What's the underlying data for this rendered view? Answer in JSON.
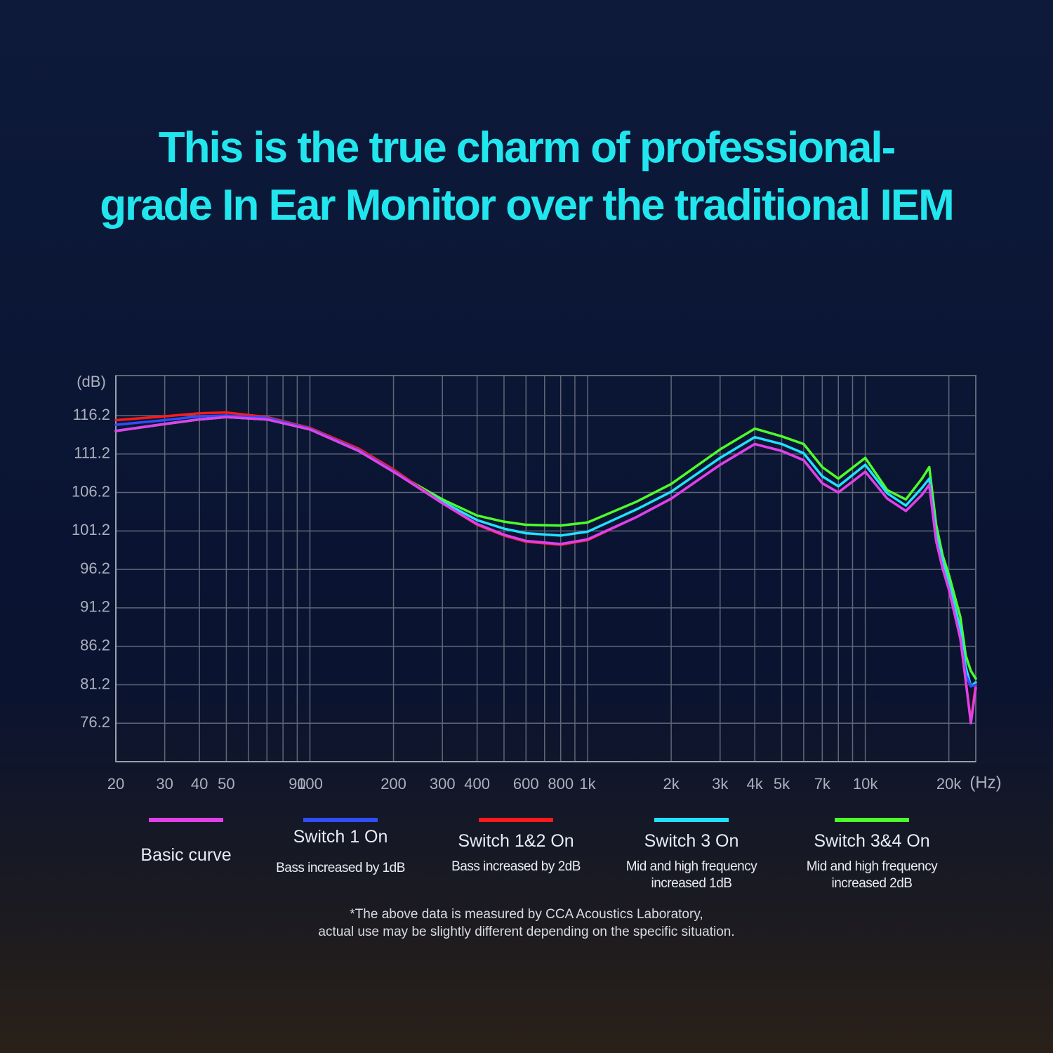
{
  "chart_data": {
    "type": "line",
    "title_lines": [
      "This is the true charm of professional-",
      "grade In Ear Monitor over the traditional IEM"
    ],
    "ylabel": "(dB)",
    "xlabel": "(Hz)",
    "xscale": "log",
    "grid": true,
    "xlim": [
      20,
      25000
    ],
    "ylim": [
      71.2,
      121.4
    ],
    "xticks": [
      20,
      30,
      40,
      50,
      90,
      100,
      200,
      300,
      400,
      600,
      800,
      {
        "value": 1000,
        "label": "1k"
      },
      {
        "value": 2000,
        "label": "2k"
      },
      {
        "value": 3000,
        "label": "3k"
      },
      {
        "value": 4000,
        "label": "4k"
      },
      {
        "value": 5000,
        "label": "5k"
      },
      {
        "value": 7000,
        "label": "7k"
      },
      {
        "value": 10000,
        "label": "10k"
      },
      {
        "value": 20000,
        "label": "20k"
      }
    ],
    "xminor": [
      60,
      70,
      80,
      500,
      700,
      900,
      6000,
      8000,
      9000
    ],
    "yticks": [
      116.2,
      111.2,
      106.2,
      101.2,
      96.2,
      91.2,
      86.2,
      81.2,
      76.2
    ],
    "x": [
      20,
      30,
      40,
      50,
      70,
      100,
      150,
      200,
      300,
      400,
      500,
      600,
      800,
      1000,
      1500,
      2000,
      3000,
      4000,
      5000,
      6000,
      7000,
      8000,
      10000,
      12000,
      14000,
      16000,
      17000,
      18000,
      19000,
      20000,
      22000,
      23000,
      24000,
      25000
    ],
    "series": [
      {
        "name": "Switch 3&4 On",
        "description": "Mid and high frequency increased 2dB",
        "color": "#4dff2a",
        "values": [
          114.2,
          115.1,
          115.7,
          116.0,
          115.7,
          114.4,
          111.6,
          108.9,
          105.3,
          103.2,
          102.4,
          102.0,
          101.9,
          102.3,
          105.0,
          107.3,
          111.8,
          114.5,
          113.5,
          112.5,
          109.5,
          108.0,
          110.7,
          106.5,
          105.3,
          108.0,
          109.5,
          102.0,
          98.0,
          95.5,
          90.0,
          85.0,
          83.0,
          82.0
        ]
      },
      {
        "name": "Switch 3 On",
        "description": "Mid and high frequency increased 1dB",
        "color": "#22e0ff",
        "values": [
          114.2,
          115.1,
          115.7,
          116.0,
          115.7,
          114.4,
          111.6,
          108.9,
          105.0,
          102.6,
          101.5,
          100.9,
          100.6,
          101.1,
          104.0,
          106.3,
          110.7,
          113.4,
          112.5,
          111.3,
          108.3,
          107.0,
          109.8,
          106.1,
          104.5,
          106.8,
          108.0,
          100.8,
          97.2,
          94.5,
          88.5,
          83.5,
          81.0,
          81.5
        ]
      },
      {
        "name": "Switch 1&2 On",
        "description": "Bass increased by 2dB",
        "color": "#ff1a1a",
        "values": [
          115.6,
          116.1,
          116.5,
          116.6,
          116.0,
          114.6,
          111.9,
          109.2,
          104.8,
          102.0,
          100.6,
          99.8,
          99.4,
          100.0,
          103.0,
          105.4,
          109.8,
          112.5,
          111.6,
          110.4,
          107.4,
          106.2,
          108.9,
          105.4,
          103.8,
          105.9,
          107.2,
          99.9,
          96.3,
          93.6,
          87.2,
          81.7,
          76.5,
          81.2
        ]
      },
      {
        "name": "Switch 1 On",
        "description": "Bass increased by 1dB",
        "color": "#2f4dff",
        "values": [
          115.0,
          115.6,
          116.1,
          116.2,
          115.9,
          114.5,
          111.7,
          109.0,
          104.8,
          102.1,
          100.7,
          99.9,
          99.5,
          100.1,
          103.0,
          105.4,
          109.8,
          112.5,
          111.6,
          110.4,
          107.4,
          106.2,
          108.9,
          105.4,
          103.8,
          105.9,
          107.2,
          99.9,
          96.3,
          93.6,
          87.2,
          82.5,
          81.0,
          81.2
        ]
      },
      {
        "name": "Basic curve",
        "color": "#e040e8",
        "values": [
          114.2,
          115.1,
          115.7,
          116.0,
          115.7,
          114.4,
          111.6,
          108.9,
          104.8,
          102.1,
          100.7,
          99.9,
          99.5,
          100.1,
          103.0,
          105.4,
          109.8,
          112.5,
          111.6,
          110.4,
          107.4,
          106.2,
          108.9,
          105.4,
          103.8,
          105.9,
          107.2,
          99.9,
          96.3,
          93.6,
          87.2,
          81.7,
          76.2,
          80.8
        ]
      }
    ],
    "note_lines": [
      "*The above data is measured by CCA Acoustics Laboratory,",
      "actual use may be slightly different depending on the specific situation."
    ]
  }
}
